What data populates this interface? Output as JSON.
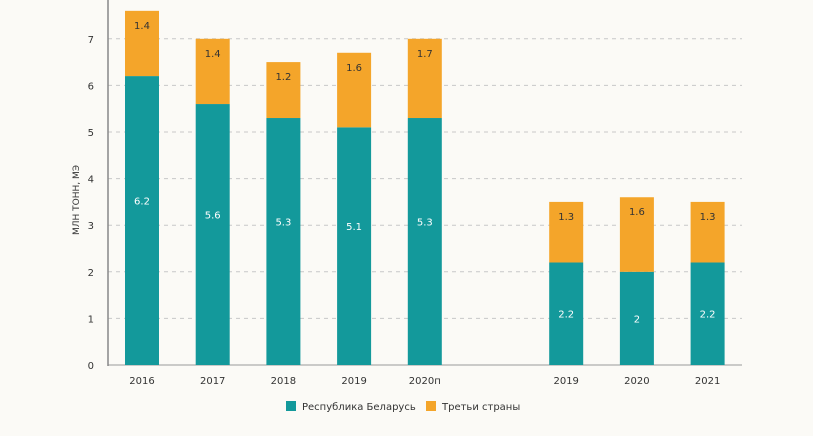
{
  "chart_data": {
    "type": "bar",
    "stacked": true,
    "title": "",
    "xlabel": "",
    "ylabel": "МЛН ТОНН, МЭ",
    "ylim": [
      0,
      7.6
    ],
    "yticks": [
      "0",
      "1",
      "2",
      "3",
      "4",
      "5",
      "6",
      "7"
    ],
    "grid": true,
    "legend_position": "bottom-center",
    "categories": [
      "2016",
      "2017",
      "2018",
      "2019",
      "2020п",
      "",
      "2019",
      "2020",
      "2021"
    ],
    "series": [
      {
        "name": "Республика Беларусь",
        "color": "#13999b",
        "values": [
          6.2,
          5.6,
          5.3,
          5.1,
          5.3,
          null,
          2.2,
          2,
          2.2
        ],
        "labels": [
          "6.2",
          "5.6",
          "5.3",
          "5.1",
          "5.3",
          "",
          "2.2",
          "2",
          "2.2"
        ]
      },
      {
        "name": "Третьи страны",
        "color": "#f4a52a",
        "values": [
          1.4,
          1.4,
          1.2,
          1.6,
          1.7,
          null,
          1.3,
          1.6,
          1.3
        ],
        "labels": [
          "1.4",
          "1.4",
          "1.2",
          "1.6",
          "1.7",
          "",
          "1.3",
          "1.6",
          "1.3"
        ]
      }
    ]
  }
}
